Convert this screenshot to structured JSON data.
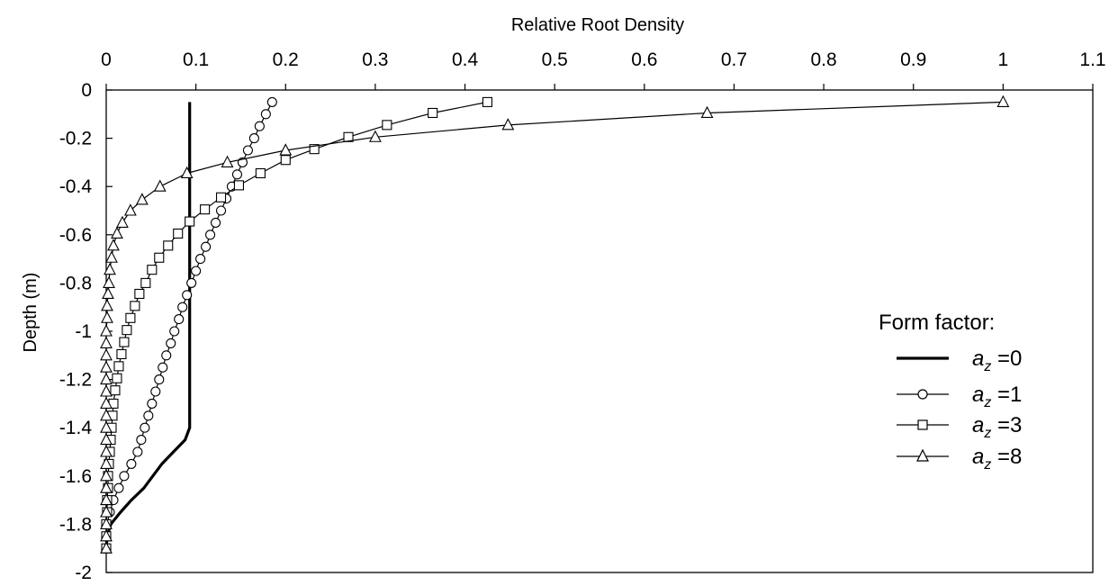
{
  "chart_data": {
    "type": "line",
    "title": "",
    "xlabel": "Relative Root Density",
    "ylabel": "Depth (m)",
    "x_axis_position": "top",
    "xlim": [
      0,
      1.1
    ],
    "ylim": [
      -2,
      0
    ],
    "x_ticks": [
      "0",
      "0.1",
      "0.2",
      "0.3",
      "0.4",
      "0.5",
      "0.6",
      "0.7",
      "0.8",
      "0.9",
      "1",
      "1.1"
    ],
    "y_ticks": [
      "0",
      "-0.2",
      "-0.4",
      "-0.6",
      "-0.8",
      "-1",
      "-1.2",
      "-1.4",
      "-1.6",
      "-1.8",
      "-2"
    ],
    "grid": false,
    "legend": {
      "title": "Form factor:",
      "position": "right",
      "entries": [
        {
          "var": "a",
          "sub": "z",
          "text": " =0"
        },
        {
          "var": "a",
          "sub": "z",
          "text": " =1"
        },
        {
          "var": "a",
          "sub": "z",
          "text": " =3"
        },
        {
          "var": "a",
          "sub": "z",
          "text": " =8"
        }
      ]
    },
    "series": [
      {
        "name": "az =0",
        "marker": "none",
        "line_width": "thick",
        "points": [
          [
            0.093,
            -0.05
          ],
          [
            0.093,
            -0.2
          ],
          [
            0.093,
            -0.4
          ],
          [
            0.093,
            -0.6
          ],
          [
            0.093,
            -0.8
          ],
          [
            0.093,
            -1.0
          ],
          [
            0.093,
            -1.2
          ],
          [
            0.093,
            -1.4
          ],
          [
            0.088,
            -1.45
          ],
          [
            0.075,
            -1.5
          ],
          [
            0.062,
            -1.55
          ],
          [
            0.052,
            -1.6
          ],
          [
            0.042,
            -1.65
          ],
          [
            0.028,
            -1.7
          ],
          [
            0.016,
            -1.75
          ],
          [
            0.005,
            -1.8
          ],
          [
            0.001,
            -1.85
          ],
          [
            0.0,
            -1.9
          ]
        ]
      },
      {
        "name": "az =1",
        "marker": "circle",
        "line_width": "thin",
        "points": [
          [
            0.185,
            -0.05
          ],
          [
            0.178,
            -0.1
          ],
          [
            0.171,
            -0.15
          ],
          [
            0.165,
            -0.2
          ],
          [
            0.158,
            -0.25
          ],
          [
            0.152,
            -0.3
          ],
          [
            0.146,
            -0.35
          ],
          [
            0.14,
            -0.4
          ],
          [
            0.134,
            -0.45
          ],
          [
            0.128,
            -0.5
          ],
          [
            0.122,
            -0.55
          ],
          [
            0.116,
            -0.6
          ],
          [
            0.111,
            -0.65
          ],
          [
            0.105,
            -0.7
          ],
          [
            0.1,
            -0.75
          ],
          [
            0.095,
            -0.8
          ],
          [
            0.09,
            -0.85
          ],
          [
            0.085,
            -0.9
          ],
          [
            0.081,
            -0.95
          ],
          [
            0.076,
            -1.0
          ],
          [
            0.072,
            -1.05
          ],
          [
            0.067,
            -1.1
          ],
          [
            0.063,
            -1.15
          ],
          [
            0.059,
            -1.2
          ],
          [
            0.055,
            -1.25
          ],
          [
            0.051,
            -1.3
          ],
          [
            0.047,
            -1.35
          ],
          [
            0.043,
            -1.4
          ],
          [
            0.039,
            -1.45
          ],
          [
            0.035,
            -1.5
          ],
          [
            0.028,
            -1.55
          ],
          [
            0.02,
            -1.6
          ],
          [
            0.014,
            -1.65
          ],
          [
            0.008,
            -1.7
          ],
          [
            0.004,
            -1.75
          ],
          [
            0.001,
            -1.8
          ],
          [
            0.0,
            -1.85
          ],
          [
            0.0,
            -1.9
          ]
        ]
      },
      {
        "name": "az =3",
        "marker": "square",
        "line_width": "thin",
        "points": [
          [
            0.425,
            -0.05
          ],
          [
            0.364,
            -0.095
          ],
          [
            0.313,
            -0.145
          ],
          [
            0.27,
            -0.195
          ],
          [
            0.232,
            -0.245
          ],
          [
            0.2,
            -0.29
          ],
          [
            0.172,
            -0.345
          ],
          [
            0.148,
            -0.395
          ],
          [
            0.128,
            -0.445
          ],
          [
            0.11,
            -0.495
          ],
          [
            0.093,
            -0.545
          ],
          [
            0.08,
            -0.595
          ],
          [
            0.069,
            -0.645
          ],
          [
            0.059,
            -0.695
          ],
          [
            0.051,
            -0.745
          ],
          [
            0.044,
            -0.8
          ],
          [
            0.037,
            -0.845
          ],
          [
            0.032,
            -0.895
          ],
          [
            0.027,
            -0.945
          ],
          [
            0.023,
            -0.995
          ],
          [
            0.02,
            -1.045
          ],
          [
            0.017,
            -1.095
          ],
          [
            0.014,
            -1.145
          ],
          [
            0.012,
            -1.195
          ],
          [
            0.01,
            -1.245
          ],
          [
            0.008,
            -1.3
          ],
          [
            0.007,
            -1.35
          ],
          [
            0.006,
            -1.4
          ],
          [
            0.005,
            -1.45
          ],
          [
            0.004,
            -1.5
          ],
          [
            0.003,
            -1.55
          ],
          [
            0.002,
            -1.6
          ],
          [
            0.002,
            -1.65
          ],
          [
            0.001,
            -1.7
          ],
          [
            0.001,
            -1.75
          ],
          [
            0.0,
            -1.8
          ],
          [
            0.0,
            -1.85
          ],
          [
            0.0,
            -1.9
          ]
        ]
      },
      {
        "name": "az =8",
        "marker": "triangle",
        "line_width": "thin",
        "points": [
          [
            1.0,
            -0.05
          ],
          [
            0.67,
            -0.095
          ],
          [
            0.448,
            -0.145
          ],
          [
            0.3,
            -0.195
          ],
          [
            0.2,
            -0.25
          ],
          [
            0.135,
            -0.3
          ],
          [
            0.09,
            -0.345
          ],
          [
            0.06,
            -0.4
          ],
          [
            0.04,
            -0.455
          ],
          [
            0.027,
            -0.5
          ],
          [
            0.018,
            -0.55
          ],
          [
            0.012,
            -0.595
          ],
          [
            0.008,
            -0.645
          ],
          [
            0.006,
            -0.695
          ],
          [
            0.004,
            -0.745
          ],
          [
            0.003,
            -0.8
          ],
          [
            0.002,
            -0.845
          ],
          [
            0.001,
            -0.895
          ],
          [
            0.001,
            -0.945
          ],
          [
            0.0,
            -1.0
          ],
          [
            0.0,
            -1.05
          ],
          [
            0.0,
            -1.1
          ],
          [
            0.0,
            -1.15
          ],
          [
            0.0,
            -1.2
          ],
          [
            0.0,
            -1.25
          ],
          [
            0.0,
            -1.3
          ],
          [
            0.0,
            -1.35
          ],
          [
            0.0,
            -1.4
          ],
          [
            0.0,
            -1.45
          ],
          [
            0.0,
            -1.5
          ],
          [
            0.0,
            -1.55
          ],
          [
            0.0,
            -1.6
          ],
          [
            0.0,
            -1.65
          ],
          [
            0.0,
            -1.7
          ],
          [
            0.0,
            -1.75
          ],
          [
            0.0,
            -1.8
          ],
          [
            0.0,
            -1.85
          ],
          [
            0.0,
            -1.9
          ]
        ]
      }
    ]
  }
}
